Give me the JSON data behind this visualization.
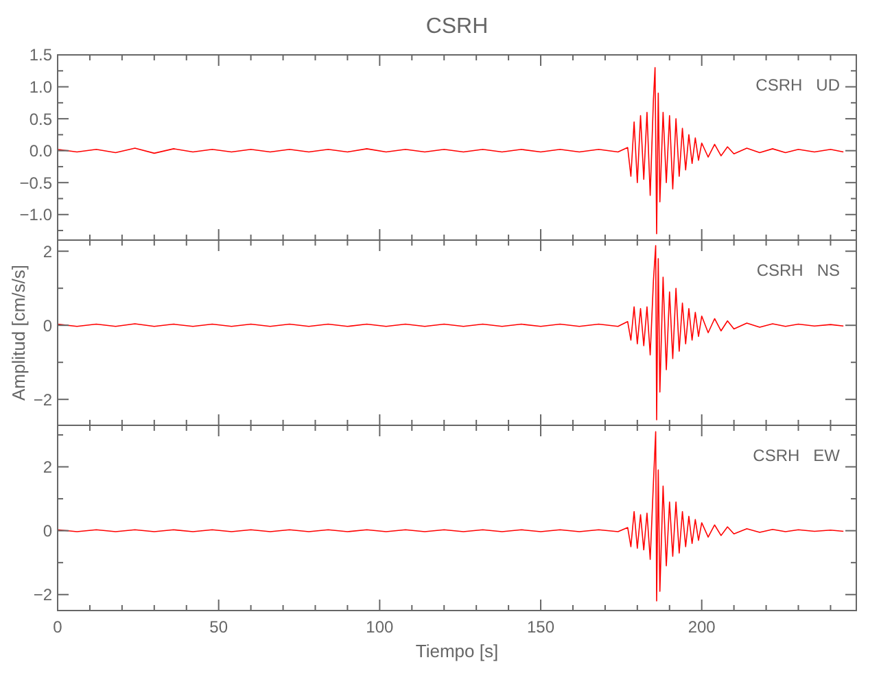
{
  "chart_data": [
    {
      "type": "line",
      "title": "CSRH",
      "annotations": [
        "CSRH   UD"
      ],
      "tick_labels": "y",
      "marker": "none",
      "line_style": "solid",
      "xlim": [
        0,
        248
      ],
      "xticks": [
        0,
        {
          "value": 10,
          "label": null
        },
        {
          "value": 20,
          "label": null
        },
        {
          "value": 30,
          "label": null
        },
        {
          "value": 40,
          "label": null
        },
        50,
        {
          "value": 60,
          "label": null
        },
        {
          "value": 70,
          "label": null
        },
        {
          "value": 80,
          "label": null
        },
        {
          "value": 90,
          "label": null
        },
        100,
        {
          "value": 110,
          "label": null
        },
        {
          "value": 120,
          "label": null
        },
        {
          "value": 130,
          "label": null
        },
        {
          "value": 140,
          "label": null
        },
        150,
        {
          "value": 160,
          "label": null
        },
        {
          "value": 170,
          "label": null
        },
        {
          "value": 180,
          "label": null
        },
        {
          "value": 190,
          "label": null
        },
        200,
        {
          "value": 210,
          "label": null
        },
        {
          "value": 220,
          "label": null
        },
        {
          "value": 230,
          "label": null
        },
        {
          "value": 240,
          "label": null
        }
      ],
      "ylim": [
        -1.4,
        1.5
      ],
      "yticks": [
        {
          "value": -1.25,
          "label": null
        },
        {
          "value": -1,
          "label": "−1.0"
        },
        {
          "value": -0.75,
          "label": null
        },
        {
          "value": -0.5,
          "label": "−0.5"
        },
        {
          "value": -0.25,
          "label": null
        },
        {
          "value": 0,
          "label": "0.0"
        },
        {
          "value": 0.25,
          "label": null
        },
        {
          "value": 0.5,
          "label": "0.5"
        },
        {
          "value": 0.75,
          "label": null
        },
        {
          "value": 1,
          "label": "1.0"
        },
        {
          "value": 1.25,
          "label": null
        },
        {
          "value": 1.5,
          "label": "1.5"
        }
      ],
      "series": [
        {
          "color": "#ff0000",
          "x": [
            0,
            6,
            12,
            18,
            24,
            30,
            36,
            42,
            48,
            54,
            60,
            66,
            72,
            78,
            84,
            90,
            96,
            102,
            108,
            114,
            120,
            126,
            132,
            138,
            144,
            150,
            156,
            162,
            168,
            174,
            177,
            178,
            179,
            180,
            181,
            182,
            183,
            184,
            185,
            185.5,
            186,
            186.5,
            187,
            188,
            189,
            190,
            191,
            192,
            193,
            194,
            195,
            196,
            197,
            198,
            199,
            200,
            202,
            204,
            206,
            208,
            210,
            214,
            218,
            222,
            226,
            230,
            235,
            240,
            244
          ],
          "values": [
            0.02,
            -0.02,
            0.02,
            -0.03,
            0.04,
            -0.04,
            0.03,
            -0.02,
            0.02,
            -0.02,
            0.02,
            -0.02,
            0.02,
            -0.02,
            0.02,
            -0.02,
            0.03,
            -0.02,
            0.02,
            -0.02,
            0.02,
            -0.02,
            0.02,
            -0.02,
            0.02,
            -0.02,
            0.02,
            -0.02,
            0.02,
            -0.02,
            0.05,
            -0.4,
            0.45,
            -0.5,
            0.55,
            -0.45,
            0.6,
            -0.7,
            0.8,
            1.3,
            -1.3,
            0.9,
            -0.8,
            0.6,
            -0.5,
            0.55,
            -0.6,
            0.5,
            -0.4,
            0.35,
            -0.3,
            0.25,
            -0.2,
            0.2,
            -0.15,
            0.12,
            -0.1,
            0.1,
            -0.08,
            0.06,
            -0.05,
            0.04,
            -0.03,
            0.03,
            -0.03,
            0.02,
            -0.02,
            0.02,
            -0.02
          ]
        }
      ]
    },
    {
      "type": "line",
      "ylabel": "Amplitud [cm/s/s]",
      "annotations": [
        "CSRH   NS"
      ],
      "tick_labels": "y",
      "marker": "none",
      "line_style": "solid",
      "xlim": [
        0,
        248
      ],
      "xticks": [
        0,
        {
          "value": 10,
          "label": null
        },
        {
          "value": 20,
          "label": null
        },
        {
          "value": 30,
          "label": null
        },
        {
          "value": 40,
          "label": null
        },
        50,
        {
          "value": 60,
          "label": null
        },
        {
          "value": 70,
          "label": null
        },
        {
          "value": 80,
          "label": null
        },
        {
          "value": 90,
          "label": null
        },
        100,
        {
          "value": 110,
          "label": null
        },
        {
          "value": 120,
          "label": null
        },
        {
          "value": 130,
          "label": null
        },
        {
          "value": 140,
          "label": null
        },
        150,
        {
          "value": 160,
          "label": null
        },
        {
          "value": 170,
          "label": null
        },
        {
          "value": 180,
          "label": null
        },
        {
          "value": 190,
          "label": null
        },
        200,
        {
          "value": 210,
          "label": null
        },
        {
          "value": 220,
          "label": null
        },
        {
          "value": 230,
          "label": null
        },
        {
          "value": 240,
          "label": null
        }
      ],
      "ylim": [
        -2.7,
        2.3
      ],
      "yticks": [
        {
          "value": -2,
          "label": "−2"
        },
        {
          "value": -1,
          "label": null
        },
        {
          "value": 0,
          "label": "0"
        },
        {
          "value": 1,
          "label": null
        },
        {
          "value": 2,
          "label": "2"
        }
      ],
      "series": [
        {
          "color": "#ff0000",
          "x": [
            0,
            6,
            12,
            18,
            24,
            30,
            36,
            42,
            48,
            54,
            60,
            66,
            72,
            78,
            84,
            90,
            96,
            102,
            108,
            114,
            120,
            126,
            132,
            138,
            144,
            150,
            156,
            162,
            168,
            174,
            177,
            178,
            179,
            180,
            181,
            182,
            183,
            184,
            185,
            185.7,
            186,
            186.5,
            187,
            188,
            189,
            190,
            191,
            192,
            193,
            194,
            195,
            196,
            197,
            198,
            199,
            200,
            202,
            204,
            206,
            208,
            210,
            214,
            218,
            222,
            226,
            230,
            235,
            240,
            244
          ],
          "values": [
            0.03,
            -0.03,
            0.03,
            -0.03,
            0.04,
            -0.03,
            0.03,
            -0.03,
            0.03,
            -0.03,
            0.03,
            -0.03,
            0.03,
            -0.03,
            0.03,
            -0.03,
            0.03,
            -0.03,
            0.03,
            -0.03,
            0.03,
            -0.03,
            0.03,
            -0.03,
            0.03,
            -0.03,
            0.03,
            -0.03,
            0.03,
            -0.03,
            0.1,
            -0.4,
            0.5,
            -0.5,
            0.45,
            -0.55,
            0.5,
            -0.8,
            1.2,
            2.15,
            -2.55,
            1.8,
            -1.8,
            1.3,
            -1.2,
            0.9,
            -0.9,
            1.0,
            -0.7,
            0.6,
            -0.5,
            0.45,
            -0.4,
            0.35,
            -0.3,
            0.25,
            -0.2,
            0.18,
            -0.15,
            0.12,
            -0.1,
            0.06,
            -0.05,
            0.04,
            -0.03,
            0.03,
            -0.02,
            0.02,
            -0.02
          ]
        }
      ]
    },
    {
      "type": "line",
      "xlabel": "Tiempo [s]",
      "annotations": [
        "CSRH   EW"
      ],
      "marker": "none",
      "line_style": "solid",
      "xlim": [
        0,
        248
      ],
      "xticks": [
        0,
        {
          "value": 10,
          "label": null
        },
        {
          "value": 20,
          "label": null
        },
        {
          "value": 30,
          "label": null
        },
        {
          "value": 40,
          "label": null
        },
        50,
        {
          "value": 60,
          "label": null
        },
        {
          "value": 70,
          "label": null
        },
        {
          "value": 80,
          "label": null
        },
        {
          "value": 90,
          "label": null
        },
        100,
        {
          "value": 110,
          "label": null
        },
        {
          "value": 120,
          "label": null
        },
        {
          "value": 130,
          "label": null
        },
        {
          "value": 140,
          "label": null
        },
        150,
        {
          "value": 160,
          "label": null
        },
        {
          "value": 170,
          "label": null
        },
        {
          "value": 180,
          "label": null
        },
        {
          "value": 190,
          "label": null
        },
        200,
        {
          "value": 210,
          "label": null
        },
        {
          "value": 220,
          "label": null
        },
        {
          "value": 230,
          "label": null
        },
        {
          "value": 240,
          "label": null
        }
      ],
      "ylim": [
        -2.5,
        3.3
      ],
      "yticks": [
        {
          "value": -2,
          "label": "−2"
        },
        {
          "value": -1,
          "label": null
        },
        {
          "value": 0,
          "label": "0"
        },
        {
          "value": 1,
          "label": null
        },
        {
          "value": 2,
          "label": "2"
        },
        {
          "value": 3,
          "label": null
        }
      ],
      "series": [
        {
          "color": "#ff0000",
          "x": [
            0,
            6,
            12,
            18,
            24,
            30,
            36,
            42,
            48,
            54,
            60,
            66,
            72,
            78,
            84,
            90,
            96,
            102,
            108,
            114,
            120,
            126,
            132,
            138,
            144,
            150,
            156,
            162,
            168,
            174,
            177,
            178,
            179,
            180,
            181,
            182,
            183,
            184,
            185,
            185.7,
            186,
            186.5,
            187,
            188,
            189,
            190,
            191,
            192,
            193,
            194,
            195,
            196,
            197,
            198,
            199,
            200,
            202,
            204,
            206,
            208,
            210,
            214,
            218,
            222,
            226,
            230,
            235,
            240,
            244
          ],
          "values": [
            0.03,
            -0.03,
            0.03,
            -0.03,
            0.03,
            -0.03,
            0.03,
            -0.03,
            0.03,
            -0.03,
            0.03,
            -0.03,
            0.03,
            -0.03,
            0.03,
            -0.03,
            0.03,
            -0.03,
            0.03,
            -0.03,
            0.03,
            -0.03,
            0.03,
            -0.03,
            0.03,
            -0.03,
            0.03,
            -0.03,
            0.03,
            -0.03,
            0.1,
            -0.5,
            0.6,
            -0.55,
            0.5,
            -0.6,
            0.55,
            -0.9,
            1.5,
            3.1,
            -2.2,
            1.9,
            -1.9,
            1.4,
            -1.1,
            0.9,
            -0.8,
            0.9,
            -0.7,
            0.6,
            -0.5,
            0.45,
            -0.4,
            0.35,
            -0.3,
            0.25,
            -0.2,
            0.18,
            -0.15,
            0.12,
            -0.1,
            0.06,
            -0.05,
            0.04,
            -0.03,
            0.03,
            -0.02,
            0.02,
            -0.02
          ]
        }
      ]
    }
  ]
}
